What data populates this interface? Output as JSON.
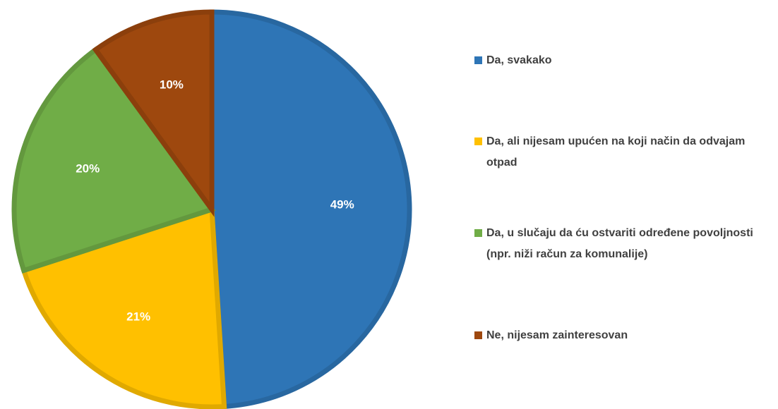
{
  "chart_data": {
    "type": "pie",
    "categories": [
      "Da, svakako",
      "Da, ali nijesam upućen na koji način da odvajam otpad",
      "Da, u slučaju da ću ostvariti određene povoljnosti (npr. niži račun za komunalije)",
      "Ne, nijesam zainteresovan"
    ],
    "values": [
      49,
      21,
      20,
      10
    ],
    "value_labels": [
      "49%",
      "21%",
      "20%",
      "10%"
    ],
    "colors": [
      "#2e75b6",
      "#ffc000",
      "#70ad47",
      "#9e480e"
    ],
    "legend": "right"
  }
}
